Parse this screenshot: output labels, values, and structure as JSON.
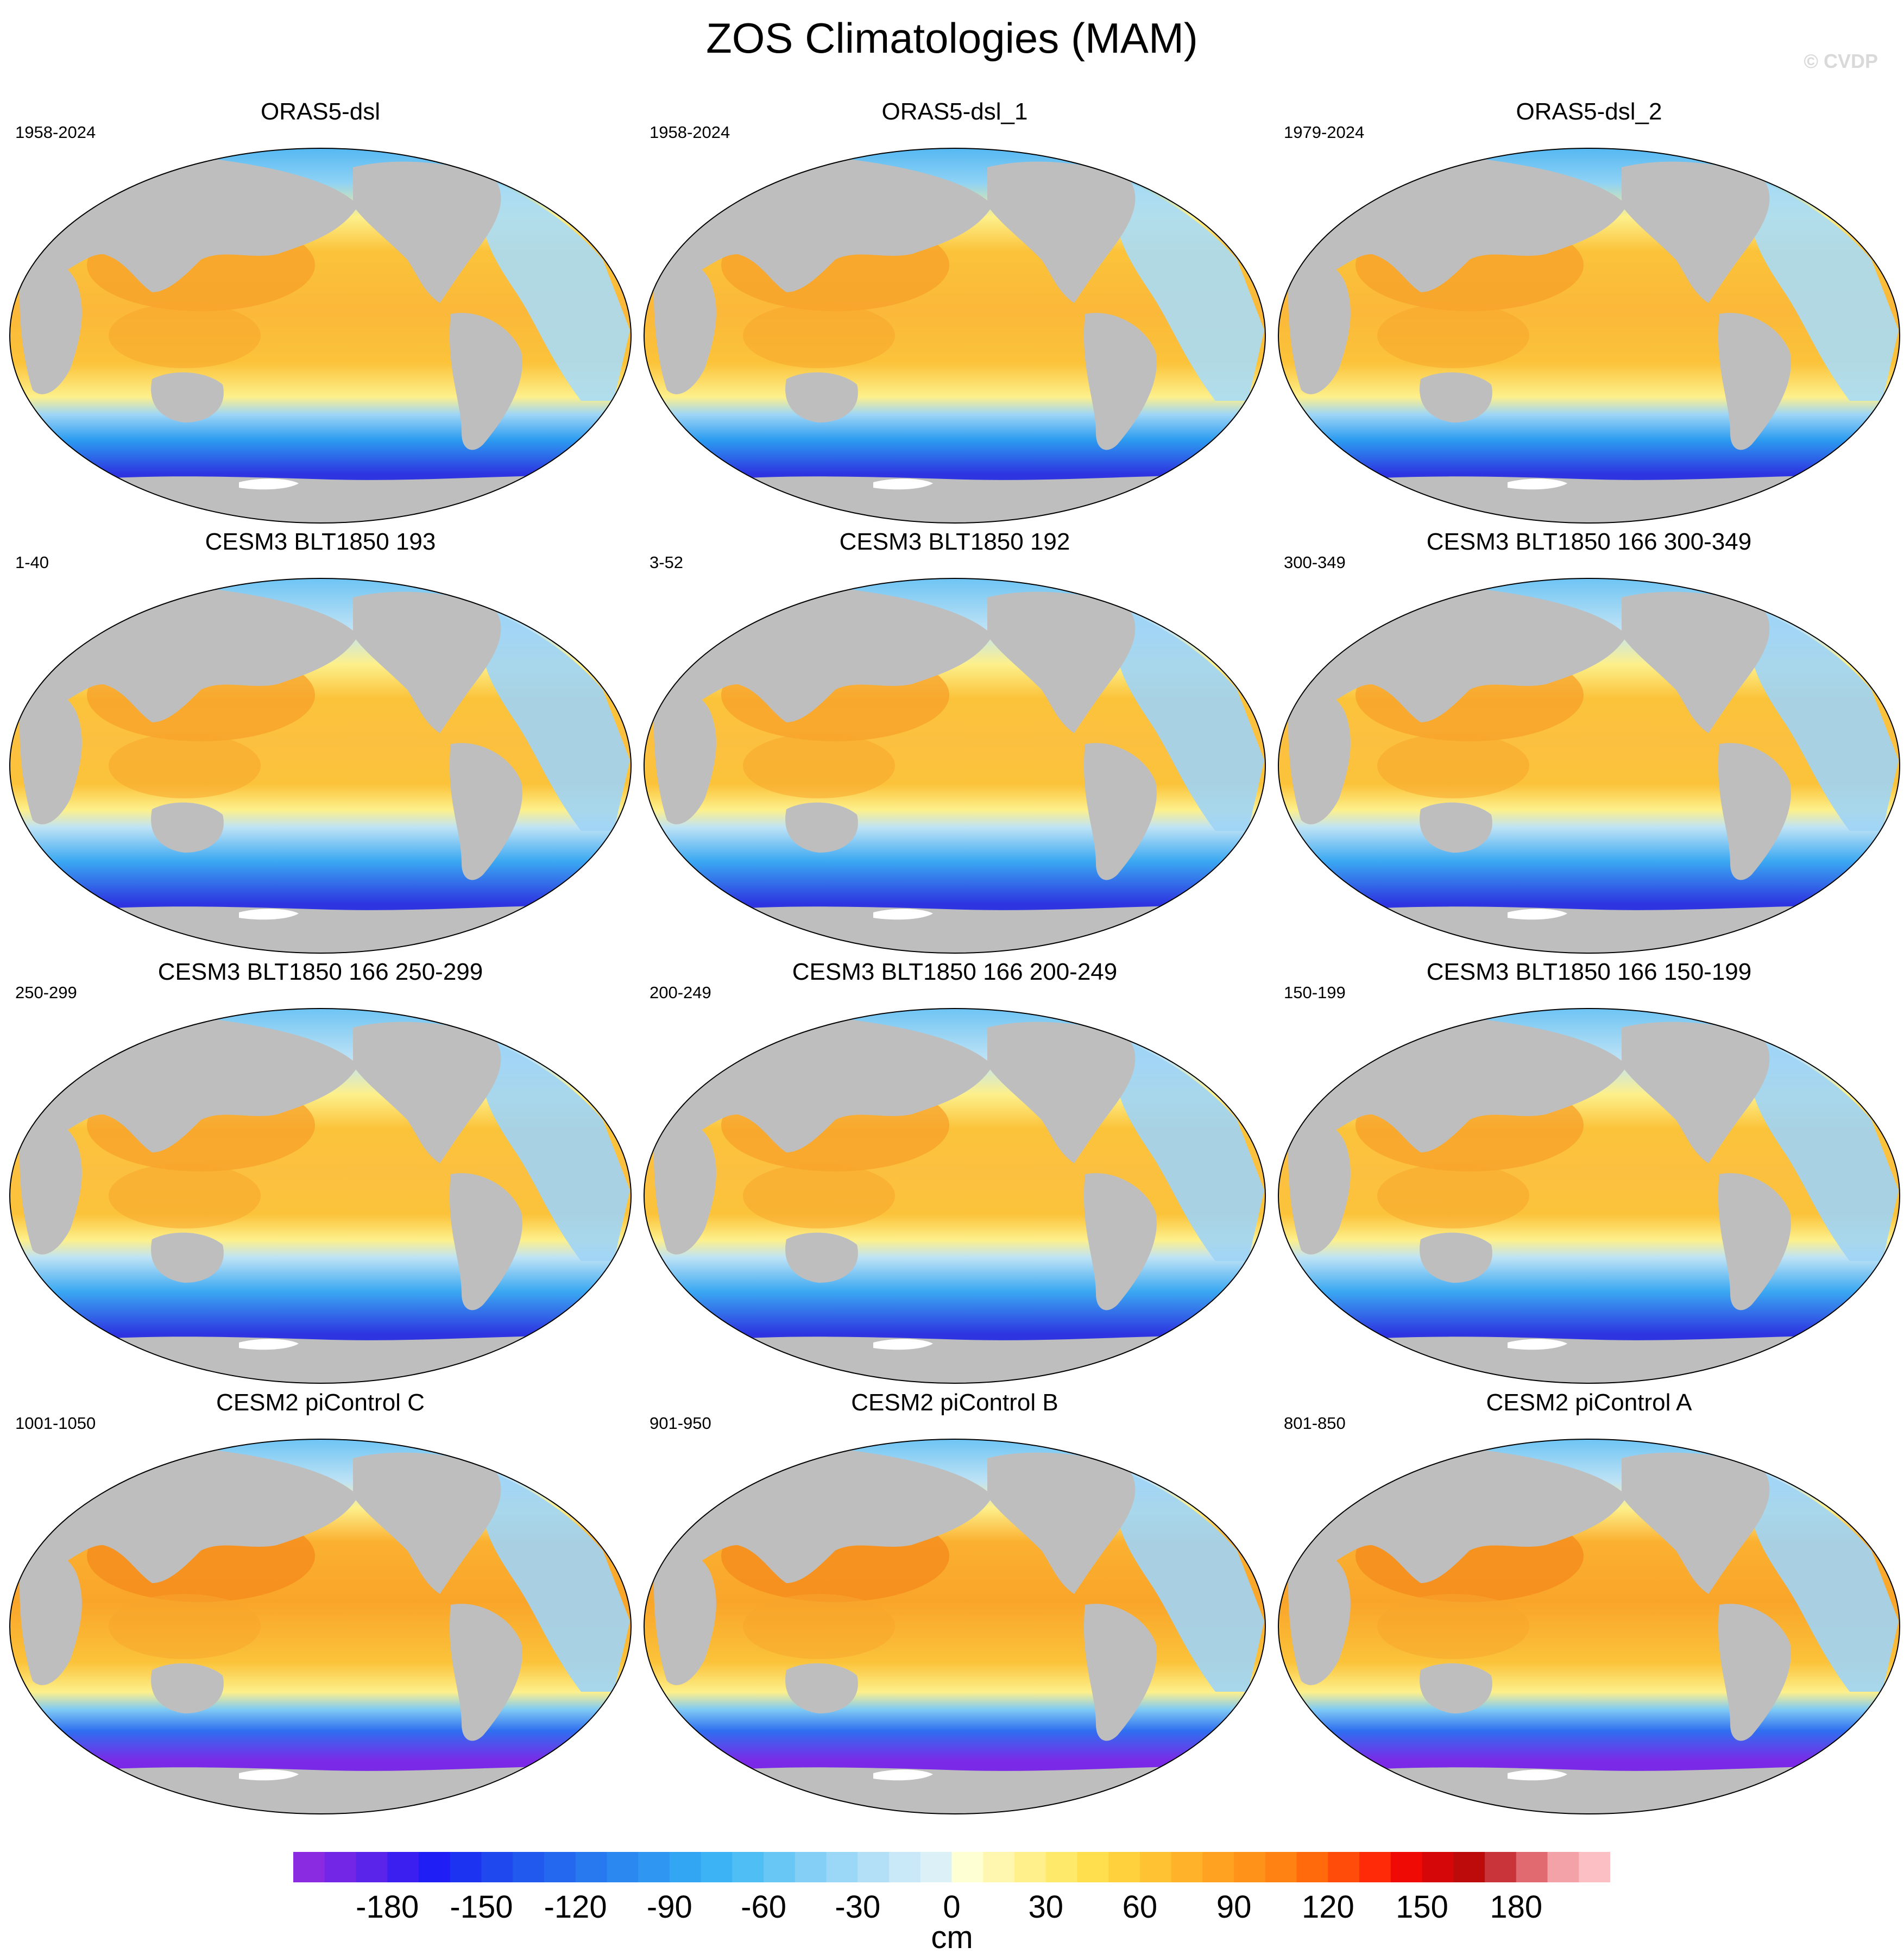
{
  "title": "ZOS Climatologies (MAM)",
  "watermark": "© CVDP",
  "colors": {
    "land": "#bebebe",
    "ice": "#ffffff",
    "warm_peak": "#f58c1e",
    "warm": "#fbc33a",
    "warm_light": "#fdf08c",
    "cool_light": "#bfe3f5",
    "cool": "#2c9cf0",
    "cool_deep": "#2d34e0",
    "cool_deepest": "#7a2ae6"
  },
  "panels": [
    {
      "title": "ORAS5-dsl",
      "years": "1958-2024",
      "variant": "oras"
    },
    {
      "title": "ORAS5-dsl_1",
      "years": "1958-2024",
      "variant": "oras"
    },
    {
      "title": "ORAS5-dsl_2",
      "years": "1979-2024",
      "variant": "oras"
    },
    {
      "title": "CESM3 BLT1850 193",
      "years": "1-40",
      "variant": "cesm3"
    },
    {
      "title": "CESM3 BLT1850 192",
      "years": "3-52",
      "variant": "cesm3"
    },
    {
      "title": "CESM3 BLT1850 166 300-349",
      "years": "300-349",
      "variant": "cesm3"
    },
    {
      "title": "CESM3 BLT1850 166 250-299",
      "years": "250-299",
      "variant": "cesm3"
    },
    {
      "title": "CESM3 BLT1850 166 200-249",
      "years": "200-249",
      "variant": "cesm3"
    },
    {
      "title": "CESM3 BLT1850 166 150-199",
      "years": "150-199",
      "variant": "cesm3"
    },
    {
      "title": "CESM2 piControl C",
      "years": "1001-1050",
      "variant": "cesm2"
    },
    {
      "title": "CESM2 piControl B",
      "years": "901-950",
      "variant": "cesm2"
    },
    {
      "title": "CESM2 piControl A",
      "years": "801-850",
      "variant": "cesm2"
    }
  ],
  "colorbar": {
    "units": "cm",
    "min": -210,
    "max": 210,
    "step": 10,
    "tick_labels": [
      "-180",
      "-150",
      "-120",
      "-90",
      "-60",
      "-30",
      "0",
      "30",
      "60",
      "90",
      "120",
      "150",
      "180"
    ],
    "tick_values": [
      -180,
      -150,
      -120,
      -90,
      -60,
      -30,
      0,
      30,
      60,
      90,
      120,
      150,
      180
    ],
    "colors": [
      "#8a2be2",
      "#7326e6",
      "#5a24ea",
      "#3a1ff0",
      "#1f1ef5",
      "#1c34f2",
      "#1f49ef",
      "#2159ee",
      "#2468ef",
      "#2878f0",
      "#2c88f1",
      "#2f97f2",
      "#33a6f3",
      "#3bb3f4",
      "#4fbef4",
      "#68c7f4",
      "#83cff5",
      "#9bd7f6",
      "#b3e0f7",
      "#c9e8f8",
      "#dcf0f8",
      "#ffffd4",
      "#fff7b0",
      "#fff08c",
      "#ffe96a",
      "#ffdf4d",
      "#ffd13d",
      "#ffc233",
      "#ffb22a",
      "#ffa222",
      "#ff9219",
      "#ff8212",
      "#ff6a0d",
      "#ff4c0a",
      "#ff2a07",
      "#ef0a05",
      "#d60708",
      "#bd0b0b",
      "#c8343a",
      "#e06a70",
      "#f3a3a8",
      "#fcc0c4"
    ]
  }
}
